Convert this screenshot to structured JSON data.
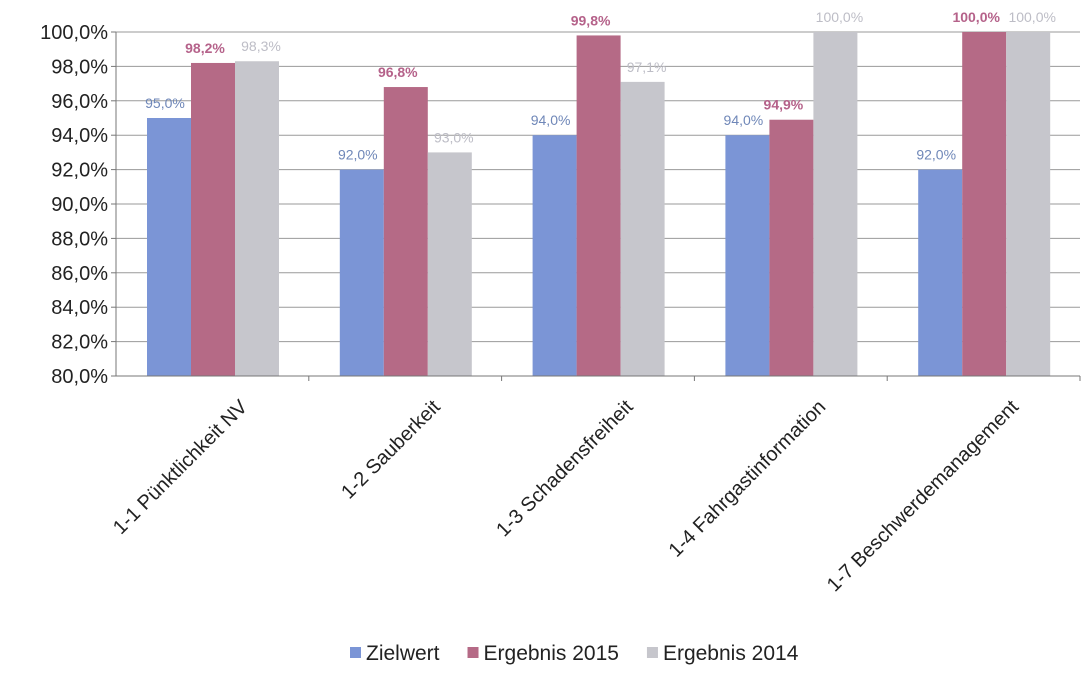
{
  "chart_data": {
    "type": "bar",
    "categories": [
      "1-1 Pünktlichkeit NV",
      "1-2 Sauberkeit",
      "1-3 Schadensfreiheit",
      "1-4 Fahrgastinformation",
      "1-7 Beschwerdemanagement"
    ],
    "series": [
      {
        "name": "Zielwert",
        "values": [
          95.0,
          92.0,
          94.0,
          94.0,
          92.0
        ],
        "labels": [
          "95,0%",
          "92,0%",
          "94,0%",
          "94,0%",
          "92,0%"
        ],
        "color": "#7b95d6",
        "label_color": "#6f87b8"
      },
      {
        "name": "Ergebnis 2015",
        "values": [
          98.2,
          96.8,
          99.8,
          94.9,
          100.0
        ],
        "labels": [
          "98,2%",
          "96,8%",
          "99,8%",
          "94,9%",
          "100,0%"
        ],
        "color": "#b56a86",
        "label_color": "#b5628a"
      },
      {
        "name": "Ergebnis 2014",
        "values": [
          98.3,
          93.0,
          97.1,
          100.0,
          100.0
        ],
        "labels": [
          "98,3%",
          "93,0%",
          "97,1%",
          "100,0%",
          "100,0%"
        ],
        "color": "#c6c6cc",
        "label_color": "#bdbdc6"
      }
    ],
    "yticks": [
      "80,0%",
      "82,0%",
      "84,0%",
      "86,0%",
      "88,0%",
      "90,0%",
      "92,0%",
      "94,0%",
      "96,0%",
      "98,0%",
      "100,0%"
    ],
    "ylim": [
      80,
      100
    ],
    "ystep": 2,
    "grid": true,
    "legend_position": "bottom"
  }
}
